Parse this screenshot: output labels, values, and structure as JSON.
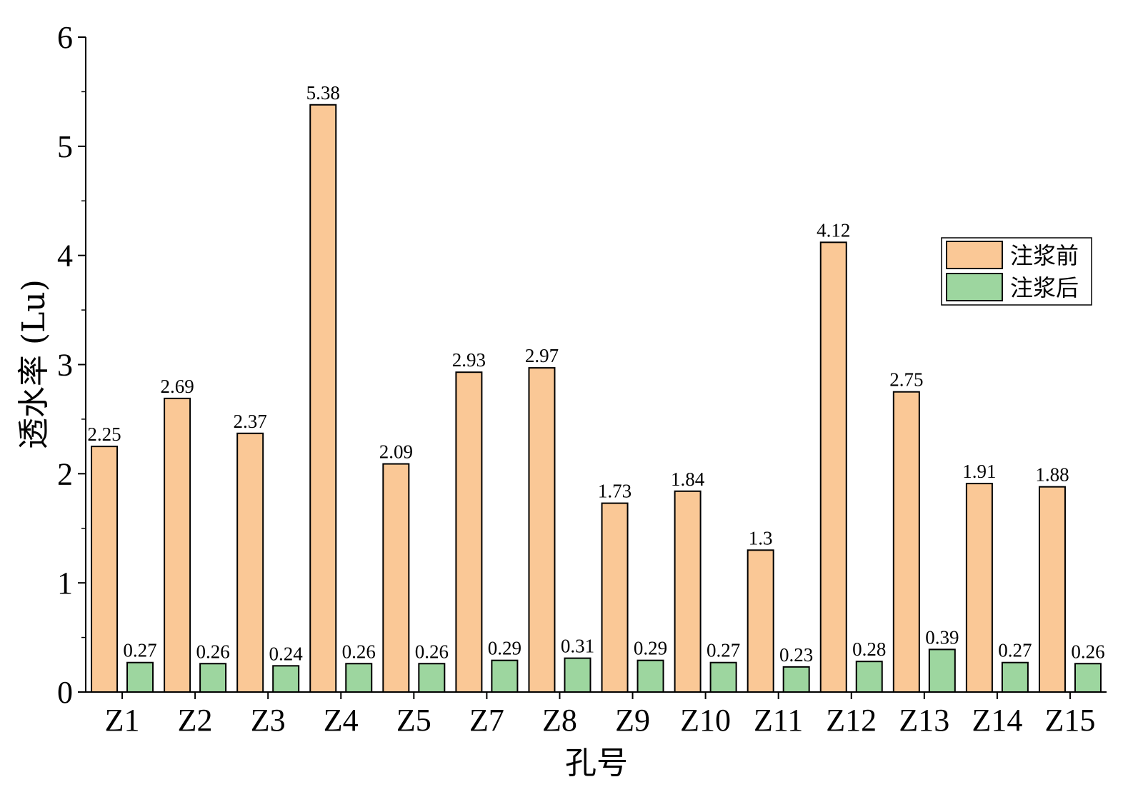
{
  "chart_data": {
    "type": "bar",
    "title": "",
    "xlabel": "孔号",
    "ylabel": "透水率 (Lu)",
    "ylim": [
      0,
      6
    ],
    "yticks": [
      "0",
      "1",
      "2",
      "3",
      "4",
      "5",
      "6"
    ],
    "categories": [
      "Z1",
      "Z2",
      "Z3",
      "Z4",
      "Z5",
      "Z7",
      "Z8",
      "Z9",
      "Z10",
      "Z11",
      "Z12",
      "Z13",
      "Z14",
      "Z15"
    ],
    "series": [
      {
        "name": "注浆前",
        "color": "#FAC896",
        "values": [
          2.25,
          2.69,
          2.37,
          5.38,
          2.09,
          2.93,
          2.97,
          1.73,
          1.84,
          1.3,
          4.12,
          2.75,
          1.91,
          1.88
        ],
        "labels": [
          "2.25",
          "2.69",
          "2.37",
          "5.38",
          "2.09",
          "2.93",
          "2.97",
          "1.73",
          "1.84",
          "1.3",
          "4.12",
          "2.75",
          "1.91",
          "1.88"
        ]
      },
      {
        "name": "注浆后",
        "color": "#9DD69F",
        "values": [
          0.27,
          0.26,
          0.24,
          0.26,
          0.26,
          0.29,
          0.31,
          0.29,
          0.27,
          0.23,
          0.28,
          0.39,
          0.27,
          0.26
        ],
        "labels": [
          "0.27",
          "0.26",
          "0.24",
          "0.26",
          "0.26",
          "0.29",
          "0.31",
          "0.29",
          "0.27",
          "0.23",
          "0.28",
          "0.39",
          "0.27",
          "0.26"
        ]
      }
    ],
    "legend_position": "right",
    "grid": false
  }
}
